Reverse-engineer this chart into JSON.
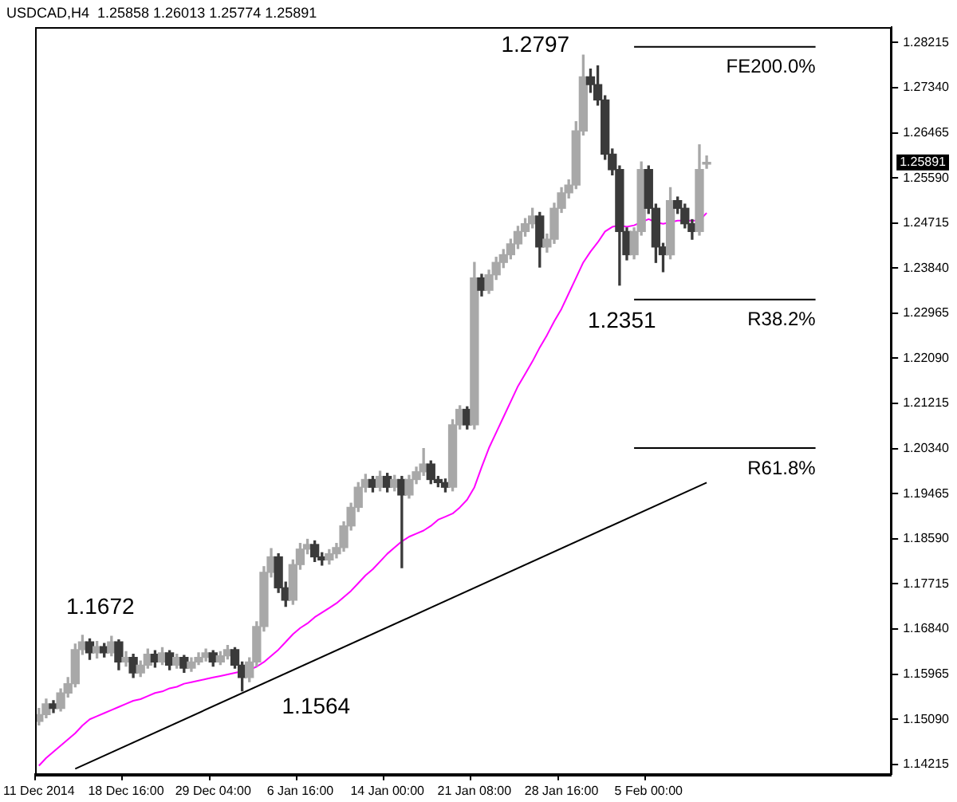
{
  "chart_data": {
    "type": "candlestick",
    "title": "USDCAD,H4  1.25858 1.26013 1.25774 1.25891",
    "colors": [
      "#a8a8a8",
      "#a8a8a8",
      "#3a3a3a",
      "#a8a8a8",
      "#a8a8a8",
      "#a8a8a8",
      "#a8a8a8",
      "#3a3a3a",
      "#a8a8a8",
      "#3a3a3a",
      "#a8a8a8",
      "#3a3a3a",
      "#a8a8a8",
      "#3a3a3a",
      "#a8a8a8",
      "#a8a8a8",
      "#3a3a3a",
      "#a8a8a8",
      "#3a3a3a",
      "#a8a8a8",
      "#3a3a3a",
      "#a8a8a8",
      "#a8a8a8",
      "#a8a8a8",
      "#3a3a3a",
      "#a8a8a8",
      "#a8a8a8",
      "#3a3a3a",
      "#3a3a3a",
      "#a8a8a8",
      "#a8a8a8",
      "#a8a8a8",
      "#a8a8a8",
      "#3a3a3a",
      "#3a3a3a",
      "#a8a8a8",
      "#a8a8a8",
      "#a8a8a8",
      "#3a3a3a",
      "#3a3a3a",
      "#a8a8a8",
      "#a8a8a8",
      "#a8a8a8",
      "#a8a8a8",
      "#a8a8a8",
      "#a8a8a8",
      "#3a3a3a",
      "#a8a8a8",
      "#3a3a3a",
      "#a8a8a8",
      "#3a3a3a",
      "#a8a8a8",
      "#a8a8a8",
      "#a8a8a8",
      "#3a3a3a",
      "#3a3a3a",
      "#3a3a3a",
      "#a8a8a8",
      "#a8a8a8",
      "#3a3a3a",
      "#a8a8a8",
      "#3a3a3a",
      "#a8a8a8",
      "#a8a8a8",
      "#a8a8a8",
      "#a8a8a8",
      "#a8a8a8",
      "#a8a8a8",
      "#a8a8a8",
      "#3a3a3a",
      "#a8a8a8",
      "#a8a8a8",
      "#a8a8a8",
      "#a8a8a8",
      "#a8a8a8",
      "#a8a8a8",
      "#3a3a3a",
      "#3a3a3a",
      "#3a3a3a",
      "#3a3a3a",
      "#3a3a3a",
      "#3a3a3a",
      "#a8a8a8",
      "#a8a8a8",
      "#3a3a3a",
      "#3a3a3a",
      "#3a3a3a",
      "#a8a8a8",
      "#3a3a3a",
      "#3a3a3a",
      "#3a3a3a",
      "#a8a8a8",
      "#a8a8a8",
      null,
      null,
      null,
      null,
      null,
      null,
      null,
      null,
      null,
      null,
      null,
      null,
      null,
      null,
      null,
      null,
      null,
      null,
      null,
      null,
      null,
      null,
      null,
      null,
      null
    ],
    "categories": [
      "11 Dec 2014",
      null,
      null,
      null,
      null,
      null,
      null,
      null,
      null,
      null,
      null,
      null,
      "18 Dec 16:00",
      null,
      null,
      null,
      null,
      null,
      null,
      null,
      null,
      null,
      null,
      null,
      "29 Dec 04:00",
      null,
      null,
      null,
      null,
      null,
      null,
      null,
      null,
      null,
      null,
      null,
      "6 Jan 16:00",
      null,
      null,
      null,
      null,
      null,
      null,
      null,
      null,
      null,
      null,
      null,
      "14 Jan 00:00",
      null,
      null,
      null,
      null,
      null,
      null,
      null,
      null,
      null,
      null,
      null,
      "21 Jan 08:00",
      null,
      null,
      null,
      null,
      null,
      null,
      null,
      null,
      null,
      null,
      null,
      "28 Jan 16:00",
      null,
      null,
      null,
      null,
      null,
      null,
      null,
      null,
      null,
      null,
      null,
      "5 Feb 00:00",
      null,
      null,
      null,
      null,
      null,
      null,
      null,
      null,
      null,
      null,
      null,
      null,
      null,
      null,
      null,
      null,
      null,
      null,
      null,
      null,
      null,
      null,
      null,
      null,
      null,
      null,
      null,
      null,
      null,
      null,
      null,
      null,
      null
    ],
    "ohlc": [
      [
        1.1505,
        1.153,
        1.1498,
        1.1518
      ],
      [
        1.1518,
        1.1548,
        1.1512,
        1.1539
      ],
      [
        1.1539,
        1.1545,
        1.1522,
        1.153
      ],
      [
        1.153,
        1.1568,
        1.1525,
        1.156
      ],
      [
        1.156,
        1.159,
        1.1552,
        1.1578
      ],
      [
        1.1578,
        1.1655,
        1.1572,
        1.1644
      ],
      [
        1.1644,
        1.1672,
        1.1635,
        1.1659
      ],
      [
        1.1659,
        1.1665,
        1.1625,
        1.1638
      ],
      [
        1.1638,
        1.166,
        1.1628,
        1.165
      ],
      [
        1.165,
        1.1656,
        1.163,
        1.1638
      ],
      [
        1.1638,
        1.167,
        1.1632,
        1.1659
      ],
      [
        1.1659,
        1.1663,
        1.1605,
        1.162
      ],
      [
        1.162,
        1.164,
        1.1612,
        1.1629
      ],
      [
        1.1629,
        1.1635,
        1.159,
        1.1599
      ],
      [
        1.1599,
        1.1622,
        1.1592,
        1.1614
      ],
      [
        1.1614,
        1.1645,
        1.1608,
        1.1635
      ],
      [
        1.1635,
        1.1642,
        1.161,
        1.162
      ],
      [
        1.162,
        1.1648,
        1.1615,
        1.1638
      ],
      [
        1.1638,
        1.1642,
        1.1605,
        1.1614
      ],
      [
        1.1614,
        1.1635,
        1.1608,
        1.1629
      ],
      [
        1.1629,
        1.1633,
        1.16,
        1.1608
      ],
      [
        1.1608,
        1.1628,
        1.1602,
        1.162
      ],
      [
        1.162,
        1.1638,
        1.1615,
        1.1629
      ],
      [
        1.1629,
        1.1645,
        1.1622,
        1.1638
      ],
      [
        1.1638,
        1.1642,
        1.1612,
        1.162
      ],
      [
        1.162,
        1.164,
        1.1615,
        1.1632
      ],
      [
        1.1632,
        1.1652,
        1.1626,
        1.1644
      ],
      [
        1.1644,
        1.1648,
        1.1608,
        1.1614
      ],
      [
        1.1614,
        1.162,
        1.1564,
        1.159
      ],
      [
        1.159,
        1.1628,
        1.1582,
        1.162
      ],
      [
        1.162,
        1.1698,
        1.1612,
        1.1689
      ],
      [
        1.1689,
        1.1805,
        1.168,
        1.1794
      ],
      [
        1.1794,
        1.184,
        1.1785,
        1.1824
      ],
      [
        1.1824,
        1.183,
        1.1755,
        1.1764
      ],
      [
        1.1764,
        1.1775,
        1.1728,
        1.174
      ],
      [
        1.174,
        1.1818,
        1.1732,
        1.1809
      ],
      [
        1.1809,
        1.185,
        1.18,
        1.1839
      ],
      [
        1.1839,
        1.1858,
        1.183,
        1.1848
      ],
      [
        1.1848,
        1.1855,
        1.1815,
        1.1824
      ],
      [
        1.1824,
        1.1832,
        1.1808,
        1.1818
      ],
      [
        1.1818,
        1.1838,
        1.181,
        1.183
      ],
      [
        1.183,
        1.185,
        1.1822,
        1.1842
      ],
      [
        1.1842,
        1.1892,
        1.1835,
        1.1884
      ],
      [
        1.1884,
        1.1928,
        1.1876,
        1.192
      ],
      [
        1.192,
        1.1968,
        1.1912,
        1.1959
      ],
      [
        1.1959,
        1.1984,
        1.195,
        1.1974
      ],
      [
        1.1974,
        1.198,
        1.195,
        1.1959
      ],
      [
        1.1959,
        1.199,
        1.1952,
        1.198
      ],
      [
        1.198,
        1.1986,
        1.195,
        1.1959
      ],
      [
        1.1959,
        1.1982,
        1.1952,
        1.1974
      ],
      [
        1.1974,
        1.198,
        1.1803,
        1.1944
      ],
      [
        1.1944,
        1.1982,
        1.1938,
        1.1974
      ],
      [
        1.1974,
        1.1998,
        1.1966,
        1.1989
      ],
      [
        1.1989,
        1.2034,
        1.1982,
        1.2004
      ],
      [
        1.2004,
        1.201,
        1.1966,
        1.1974
      ],
      [
        1.1974,
        1.198,
        1.196,
        1.1968
      ],
      [
        1.1968,
        1.1975,
        1.195,
        1.1959
      ],
      [
        1.1959,
        1.209,
        1.1952,
        1.208
      ],
      [
        1.208,
        1.2117,
        1.2072,
        1.211
      ],
      [
        1.211,
        1.2115,
        1.2072,
        1.208
      ],
      [
        1.208,
        1.2395,
        1.2072,
        1.2365
      ],
      [
        1.2365,
        1.2372,
        1.233,
        1.2341
      ],
      [
        1.2341,
        1.238,
        1.2335,
        1.2371
      ],
      [
        1.2371,
        1.2405,
        1.2362,
        1.2395
      ],
      [
        1.2395,
        1.242,
        1.2385,
        1.241
      ],
      [
        1.241,
        1.244,
        1.2402,
        1.2431
      ],
      [
        1.2431,
        1.2465,
        1.2422,
        1.2455
      ],
      [
        1.2455,
        1.248,
        1.2446,
        1.247
      ],
      [
        1.247,
        1.25,
        1.2462,
        1.2485
      ],
      [
        1.2485,
        1.2492,
        1.2386,
        1.2425
      ],
      [
        1.2425,
        1.245,
        1.2415,
        1.244
      ],
      [
        1.244,
        1.251,
        1.2432,
        1.25
      ],
      [
        1.25,
        1.254,
        1.2492,
        1.253
      ],
      [
        1.253,
        1.2555,
        1.252,
        1.2545
      ],
      [
        1.2545,
        1.2668,
        1.2538,
        1.265
      ],
      [
        1.265,
        1.2797,
        1.2642,
        1.2755
      ],
      [
        1.2755,
        1.277,
        1.2725,
        1.274
      ],
      [
        1.274,
        1.2776,
        1.27,
        1.271
      ],
      [
        1.271,
        1.2718,
        1.2595,
        1.2605
      ],
      [
        1.2605,
        1.2615,
        1.2565,
        1.2575
      ],
      [
        1.2575,
        1.2582,
        1.2351,
        1.2455
      ],
      [
        1.2455,
        1.2462,
        1.24,
        1.241
      ],
      [
        1.241,
        1.2462,
        1.2402,
        1.2455
      ],
      [
        1.2455,
        1.259,
        1.2448,
        1.2575
      ],
      [
        1.2575,
        1.2582,
        1.249,
        1.25
      ],
      [
        1.25,
        1.2508,
        1.2395,
        1.2425
      ],
      [
        1.2425,
        1.2432,
        1.2377,
        1.241
      ],
      [
        1.241,
        1.254,
        1.2402,
        1.2515
      ],
      [
        1.2515,
        1.2522,
        1.249,
        1.25
      ],
      [
        1.25,
        1.2508,
        1.2462,
        1.247
      ],
      [
        1.247,
        1.2478,
        1.244,
        1.2455
      ],
      [
        1.2455,
        1.2623,
        1.2448,
        1.2575
      ],
      [
        1.25858,
        1.26013,
        1.25774,
        1.25891
      ],
      null,
      null,
      null,
      null,
      null,
      null,
      null,
      null,
      null,
      null,
      null,
      null,
      null,
      null,
      null,
      null,
      null,
      null,
      null,
      null,
      null,
      null,
      null,
      null,
      null
    ],
    "series": [
      {
        "type": "line",
        "color": "#ff00ff",
        "values": [
          1.1419,
          1.1434,
          1.1446,
          1.1458,
          1.147,
          1.1482,
          1.1497,
          1.1509,
          1.1515,
          1.1521,
          1.1527,
          1.1533,
          1.1539,
          1.1545,
          1.1548,
          1.1554,
          1.156,
          1.1563,
          1.1569,
          1.1572,
          1.1578,
          1.1581,
          1.1584,
          1.1587,
          1.159,
          1.1593,
          1.1596,
          1.1599,
          1.1602,
          1.1605,
          1.1611,
          1.162,
          1.1632,
          1.1644,
          1.1659,
          1.1674,
          1.1686,
          1.1695,
          1.1707,
          1.1716,
          1.1725,
          1.1734,
          1.1746,
          1.1758,
          1.1773,
          1.1788,
          1.18,
          1.1815,
          1.183,
          1.1842,
          1.1854,
          1.1863,
          1.1869,
          1.1875,
          1.1884,
          1.1896,
          1.1902,
          1.1908,
          1.192,
          1.1935,
          1.1959,
          1.1998,
          1.2035,
          1.2065,
          1.2095,
          1.2125,
          1.2155,
          1.2179,
          1.2203,
          1.223,
          1.2254,
          1.2281,
          1.2305,
          1.2335,
          1.2365,
          1.2395,
          1.2416,
          1.2434,
          1.2455,
          1.2464,
          1.2467,
          1.2464,
          1.2467,
          1.2473,
          1.2479,
          1.2473,
          1.247,
          1.2473,
          1.2476,
          1.2476,
          1.2476,
          1.2476,
          1.2491,
          null,
          null,
          null,
          null,
          null,
          null,
          null,
          null,
          null,
          null,
          null,
          null,
          null,
          null,
          null,
          null,
          null,
          null,
          null,
          null,
          null,
          null,
          null,
          null,
          null
        ]
      },
      {
        "type": "line",
        "color": "#000000",
        "values": [
          null,
          null,
          null,
          null,
          null,
          1.1413,
          null,
          null,
          null,
          null,
          null,
          null,
          null,
          null,
          null,
          null,
          null,
          null,
          null,
          null,
          null,
          null,
          null,
          null,
          null,
          null,
          null,
          null,
          null,
          null,
          null,
          null,
          null,
          null,
          null,
          null,
          null,
          null,
          null,
          null,
          null,
          null,
          null,
          null,
          null,
          null,
          null,
          null,
          null,
          null,
          null,
          null,
          null,
          null,
          null,
          null,
          null,
          null,
          null,
          null,
          null,
          null,
          null,
          null,
          null,
          null,
          null,
          null,
          null,
          null,
          null,
          null,
          null,
          null,
          null,
          null,
          null,
          null,
          null,
          null,
          null,
          null,
          null,
          null,
          null,
          null,
          null,
          null,
          null,
          null,
          null,
          null,
          1.1968,
          null,
          null,
          null,
          null,
          null,
          null,
          null,
          null,
          null,
          null,
          null,
          null,
          null,
          null,
          null,
          null,
          null,
          null,
          null,
          null,
          null,
          null,
          null,
          null,
          null
        ]
      },
      {
        "type": "line",
        "name": "FE200.0%",
        "color": "#000000",
        "values": [
          null,
          null,
          null,
          null,
          null,
          null,
          null,
          null,
          null,
          null,
          null,
          null,
          null,
          null,
          null,
          null,
          null,
          null,
          null,
          null,
          null,
          null,
          null,
          null,
          null,
          null,
          null,
          null,
          null,
          null,
          null,
          null,
          null,
          null,
          null,
          null,
          null,
          null,
          null,
          null,
          null,
          null,
          null,
          null,
          null,
          null,
          null,
          null,
          null,
          null,
          null,
          null,
          null,
          null,
          null,
          null,
          null,
          null,
          null,
          null,
          null,
          null,
          null,
          null,
          null,
          null,
          null,
          null,
          null,
          null,
          null,
          null,
          null,
          null,
          null,
          null,
          null,
          null,
          null,
          null,
          null,
          null,
          1.2813,
          null,
          null,
          null,
          null,
          null,
          null,
          null,
          null,
          null,
          null,
          null,
          null,
          null,
          null,
          null,
          null,
          null,
          null,
          null,
          null,
          null,
          null,
          null,
          null,
          1.2813,
          null,
          null,
          null,
          null,
          null,
          null,
          null,
          null,
          null,
          null
        ]
      },
      {
        "type": "line",
        "name": "R38.2%",
        "color": "#000000",
        "values": [
          null,
          null,
          null,
          null,
          null,
          null,
          null,
          null,
          null,
          null,
          null,
          null,
          null,
          null,
          null,
          null,
          null,
          null,
          null,
          null,
          null,
          null,
          null,
          null,
          null,
          null,
          null,
          null,
          null,
          null,
          null,
          null,
          null,
          null,
          null,
          null,
          null,
          null,
          null,
          null,
          null,
          null,
          null,
          null,
          null,
          null,
          null,
          null,
          null,
          null,
          null,
          null,
          null,
          null,
          null,
          null,
          null,
          null,
          null,
          null,
          null,
          null,
          null,
          null,
          null,
          null,
          null,
          null,
          null,
          null,
          null,
          null,
          null,
          null,
          null,
          null,
          null,
          null,
          null,
          null,
          null,
          null,
          1.2323,
          null,
          null,
          null,
          null,
          null,
          null,
          null,
          null,
          null,
          null,
          null,
          null,
          null,
          null,
          null,
          null,
          null,
          null,
          null,
          null,
          null,
          null,
          null,
          null,
          1.2323,
          null,
          null,
          null,
          null,
          null,
          null,
          null,
          null,
          null,
          null
        ]
      },
      {
        "type": "line",
        "name": "R61.8%",
        "color": "#000000",
        "values": [
          null,
          null,
          null,
          null,
          null,
          null,
          null,
          null,
          null,
          null,
          null,
          null,
          null,
          null,
          null,
          null,
          null,
          null,
          null,
          null,
          null,
          null,
          null,
          null,
          null,
          null,
          null,
          null,
          null,
          null,
          null,
          null,
          null,
          null,
          null,
          null,
          null,
          null,
          null,
          null,
          null,
          null,
          null,
          null,
          null,
          null,
          null,
          null,
          null,
          null,
          null,
          null,
          null,
          null,
          null,
          null,
          null,
          null,
          null,
          null,
          null,
          null,
          null,
          null,
          null,
          null,
          null,
          null,
          null,
          null,
          null,
          null,
          null,
          null,
          null,
          null,
          null,
          null,
          null,
          null,
          null,
          null,
          1.2035,
          null,
          null,
          null,
          null,
          null,
          null,
          null,
          null,
          null,
          null,
          null,
          null,
          null,
          null,
          null,
          null,
          null,
          null,
          null,
          null,
          null,
          null,
          null,
          null,
          1.2035,
          null,
          null,
          null,
          null,
          null,
          null,
          null,
          null,
          null,
          null
        ]
      }
    ],
    "ylim": [
      1.1403,
      1.2852
    ],
    "yticks": [
      {
        "value": 1.28215,
        "label": "1.28215"
      },
      {
        "value": 1.2734,
        "label": "1.27340"
      },
      {
        "value": 1.26465,
        "label": "1.26465"
      },
      {
        "value": 1.2559,
        "label": "1.25590"
      },
      {
        "value": 1.24715,
        "label": "1.24715"
      },
      {
        "value": 1.2384,
        "label": "1.23840"
      },
      {
        "value": 1.22965,
        "label": "1.22965"
      },
      {
        "value": 1.2209,
        "label": "1.22090"
      },
      {
        "value": 1.21215,
        "label": "1.21215"
      },
      {
        "value": 1.2034,
        "label": "1.20340"
      },
      {
        "value": 1.19465,
        "label": "1.19465"
      },
      {
        "value": 1.1859,
        "label": "1.18590"
      },
      {
        "value": 1.17715,
        "label": "1.17715"
      },
      {
        "value": 1.1684,
        "label": "1.16840"
      },
      {
        "value": 1.15965,
        "label": "1.15965"
      },
      {
        "value": 1.1509,
        "label": "1.15090"
      },
      {
        "value": 1.14215,
        "label": "1.14215"
      }
    ],
    "annotations": [
      "1.2797",
      "1.2351",
      "1.1672",
      "1.1564",
      "1.25891"
    ],
    "grid": false,
    "legend": false
  }
}
